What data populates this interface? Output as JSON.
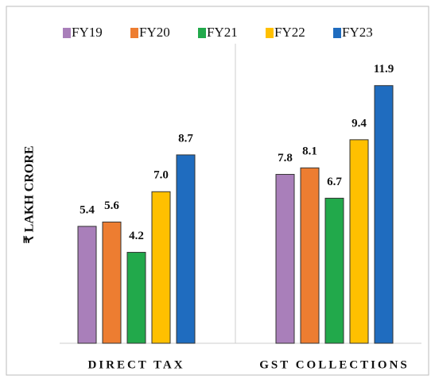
{
  "chart_data": {
    "type": "bar",
    "y_label": "₹ LAKH CRORE",
    "categories": [
      "DIRECT TAX",
      "GST COLLECTIONS"
    ],
    "series": [
      {
        "name": "FY19",
        "color": "#a97fba",
        "values": [
          5.4,
          7.8
        ]
      },
      {
        "name": "FY20",
        "color": "#ed7d31",
        "values": [
          5.6,
          8.1
        ]
      },
      {
        "name": "FY21",
        "color": "#22a94b",
        "values": [
          4.2,
          6.7
        ]
      },
      {
        "name": "FY22",
        "color": "#ffc000",
        "values": [
          7.0,
          9.4
        ]
      },
      {
        "name": "FY23",
        "color": "#1f6cbf",
        "values": [
          8.7,
          11.9
        ]
      }
    ],
    "value_labels": [
      [
        "5.4",
        "7.8"
      ],
      [
        "5.6",
        "8.1"
      ],
      [
        "4.2",
        "6.7"
      ],
      [
        "7.0",
        "9.4"
      ],
      [
        "8.7",
        "11.9"
      ]
    ],
    "ylim": [
      0,
      12
    ],
    "legend": "top"
  }
}
